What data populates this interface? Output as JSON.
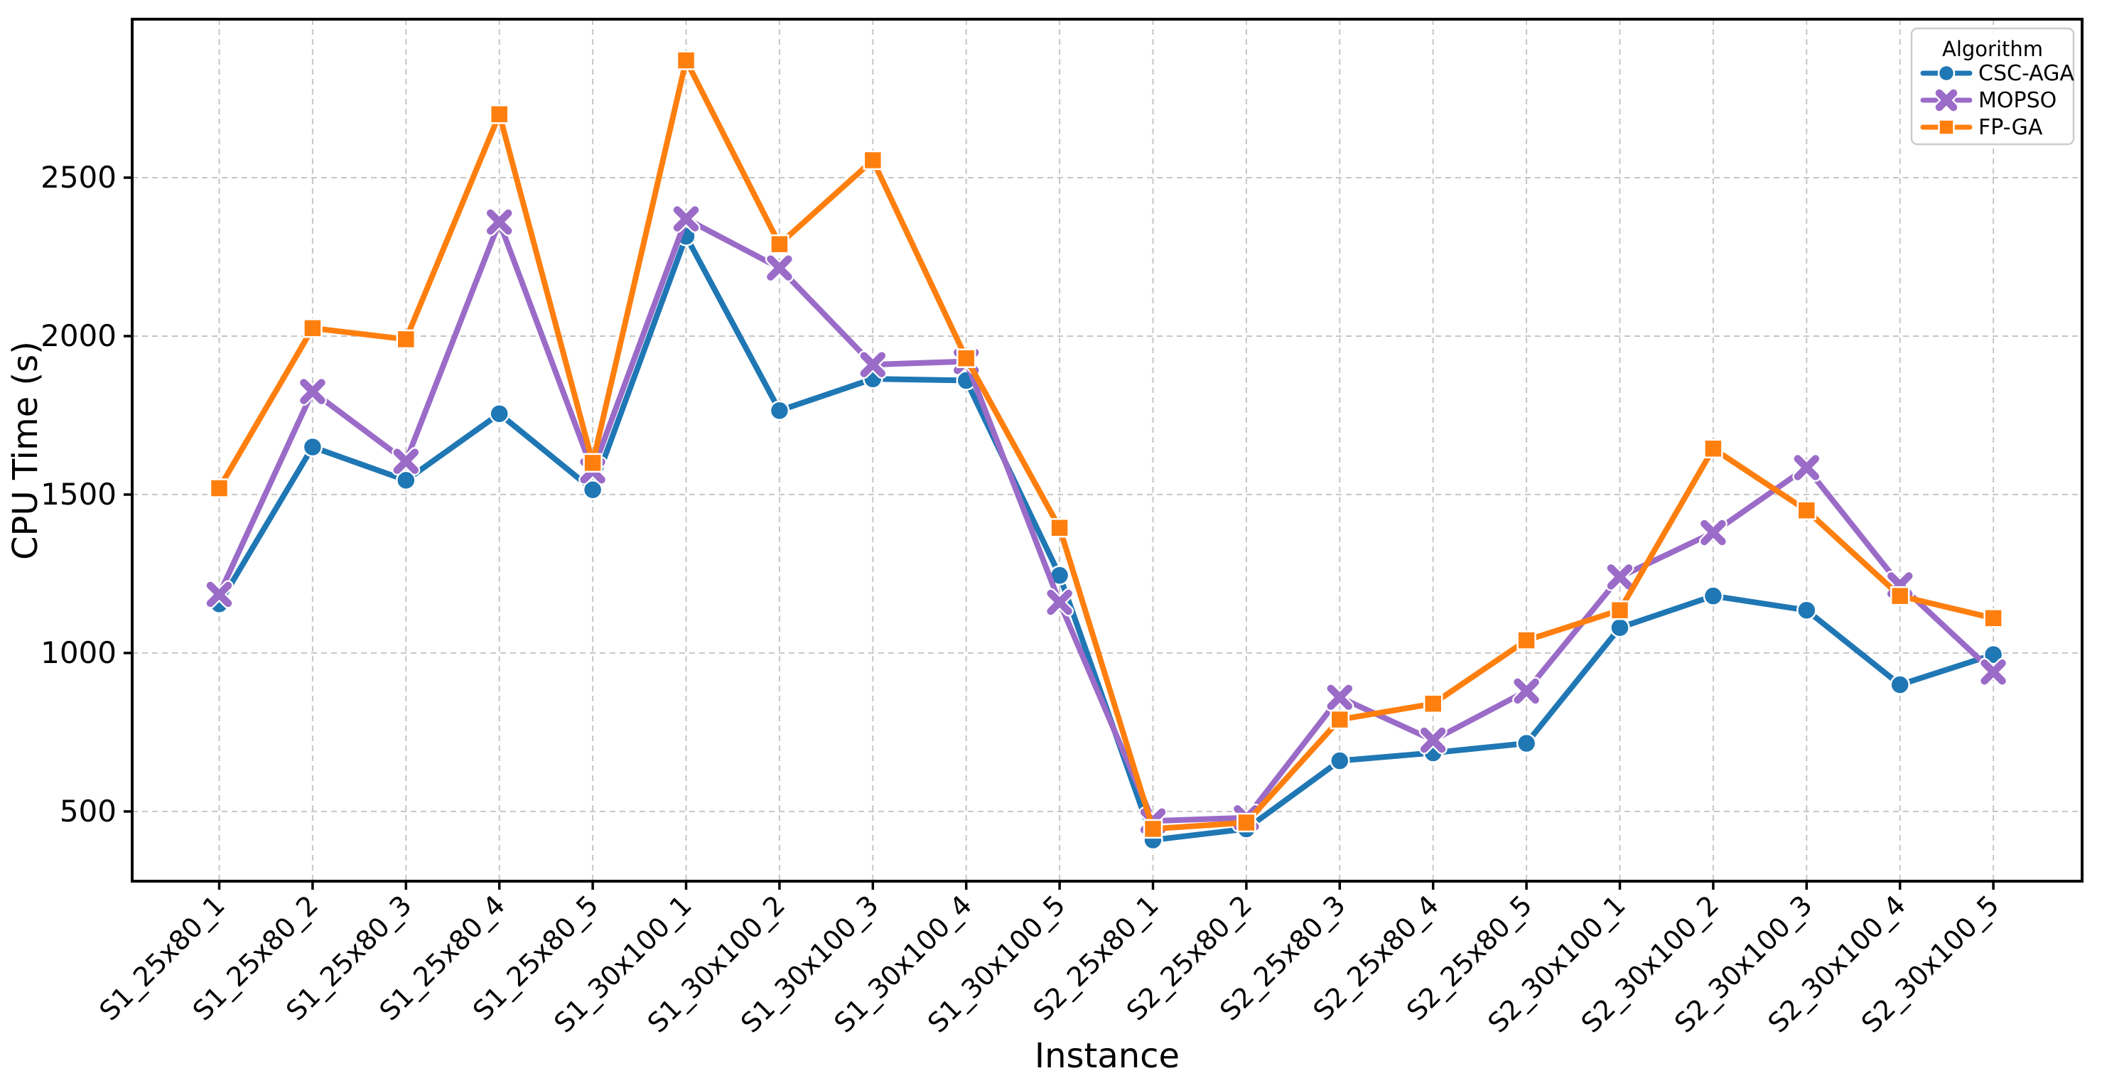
{
  "chart_data": {
    "type": "line",
    "title": "",
    "xlabel": "Instance",
    "ylabel": "CPU Time (s)",
    "categories": [
      "S1_25x80_1",
      "S1_25x80_2",
      "S1_25x80_3",
      "S1_25x80_4",
      "S1_25x80_5",
      "S1_30x100_1",
      "S1_30x100_2",
      "S1_30x100_3",
      "S1_30x100_4",
      "S1_30x100_5",
      "S2_25x80_1",
      "S2_25x80_2",
      "S2_25x80_3",
      "S2_25x80_4",
      "S2_25x80_5",
      "S2_30x100_1",
      "S2_30x100_2",
      "S2_30x100_3",
      "S2_30x100_4",
      "S2_30x100_5"
    ],
    "series": [
      {
        "name": "CSC-AGA",
        "marker": "circle",
        "color": "#1f77b4",
        "values": [
          1155,
          1650,
          1545,
          1755,
          1515,
          2315,
          1765,
          1865,
          1860,
          1245,
          410,
          445,
          660,
          685,
          715,
          1080,
          1180,
          1135,
          900,
          995
        ]
      },
      {
        "name": "MOPSO",
        "marker": "x",
        "color": "#9b6bc8",
        "values": [
          1185,
          1825,
          1605,
          2360,
          1575,
          2370,
          2215,
          1910,
          1920,
          1160,
          470,
          480,
          860,
          725,
          880,
          1240,
          1380,
          1585,
          1215,
          940
        ]
      },
      {
        "name": "FP-GA",
        "marker": "square",
        "color": "#ff7f0e",
        "values": [
          1520,
          2025,
          1990,
          2700,
          1600,
          2870,
          2290,
          2555,
          1930,
          1395,
          445,
          465,
          790,
          840,
          1040,
          1135,
          1645,
          1450,
          1180,
          1110
        ]
      }
    ],
    "yticks": [
      500,
      1000,
      1500,
      2000,
      2500
    ],
    "ylim": [
      280,
      3000
    ],
    "grid": true,
    "legend": {
      "title": "Algorithm",
      "position": "upper right"
    },
    "colors": {
      "grid": "#bdbdbd",
      "spine": "#000000",
      "background": "#ffffff",
      "legend_border": "#cccccc"
    }
  }
}
